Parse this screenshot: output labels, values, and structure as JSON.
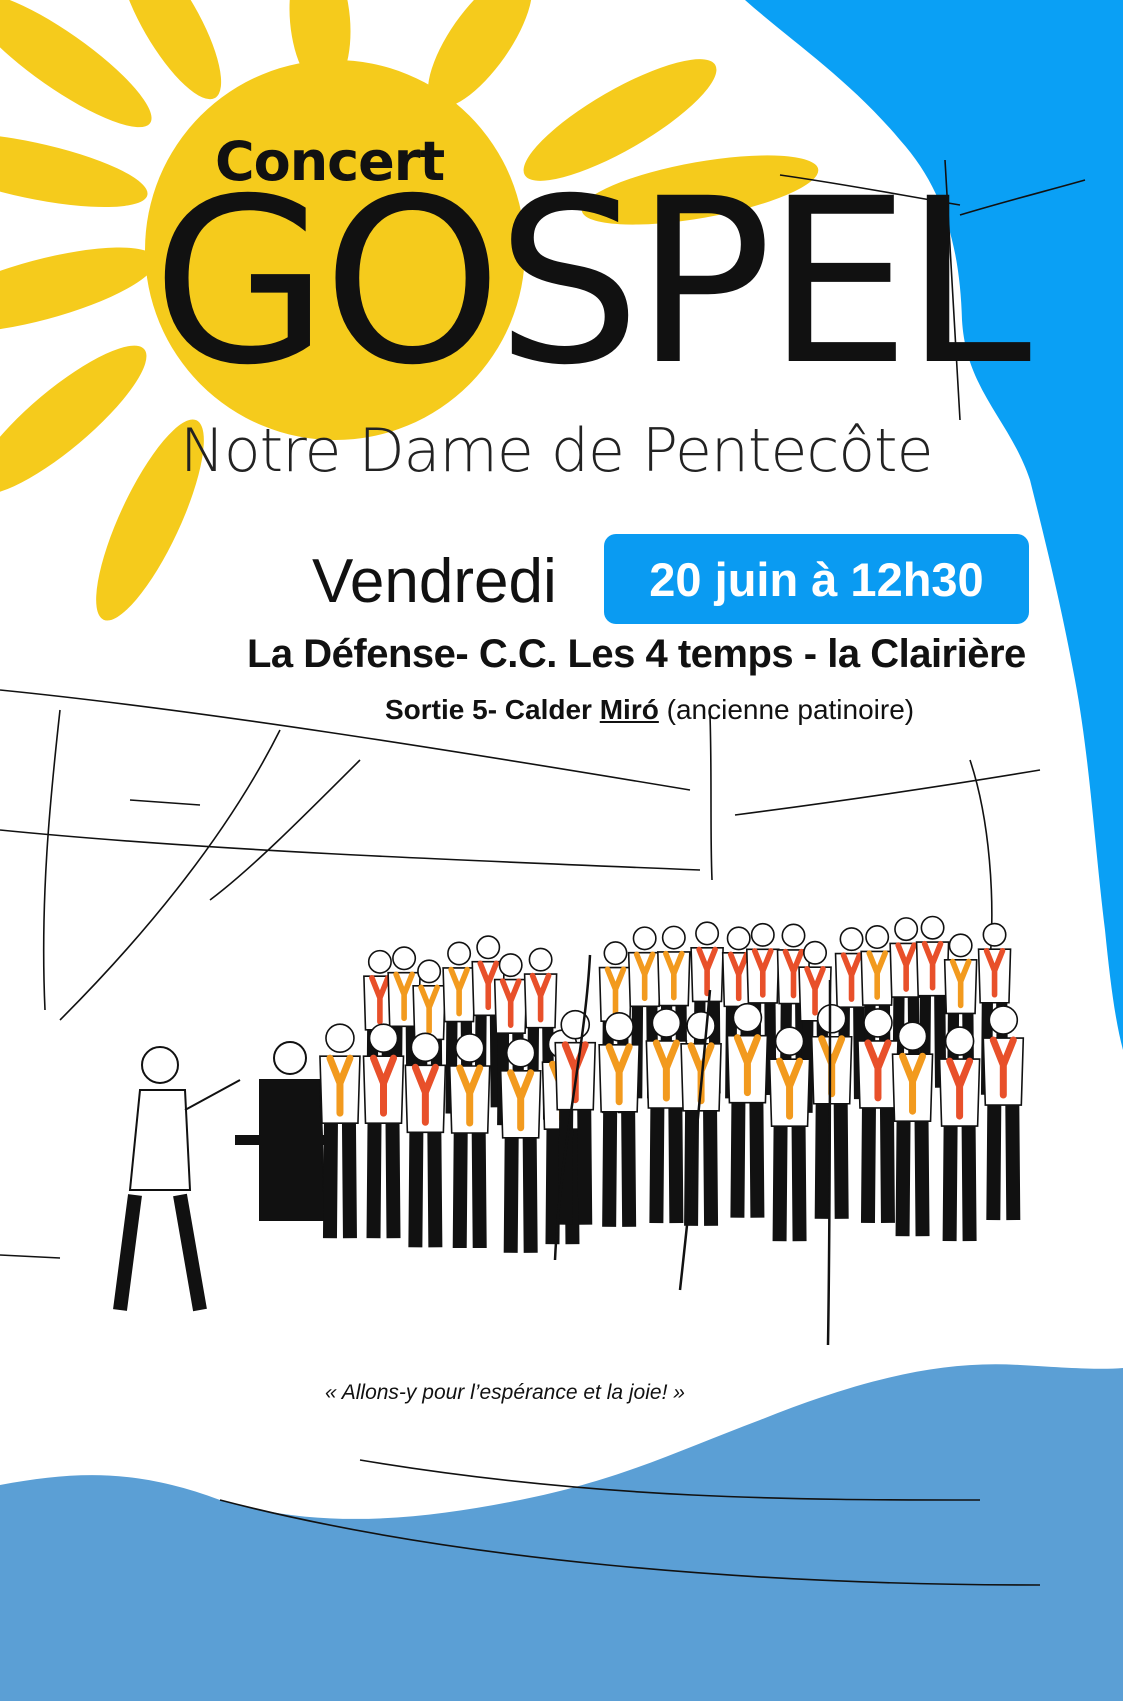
{
  "header": {
    "kicker": "Concert",
    "title": "GOSPEL",
    "church": "Notre Dame de Pentecôte"
  },
  "event": {
    "day": "Vendredi",
    "date_time": "20 juin à 12h30",
    "place": "La Défense- C.C. Les 4 temps - la Clairière",
    "exit_prefix": "Sortie 5- Calder ",
    "exit_name": "Miró",
    "exit_note": " (ancienne patinoire)"
  },
  "quote": "« Allons-y pour l’espérance et la joie! »",
  "colors": {
    "sun": "#f5cb1c",
    "sky_blue": "#0aa0f5",
    "date_box": "#0a9bf2",
    "wave_blue": "#5b9fd5",
    "choir_orange": "#f29a1e",
    "choir_red": "#e8502a"
  },
  "illustration": "gospel-choir-drawing"
}
